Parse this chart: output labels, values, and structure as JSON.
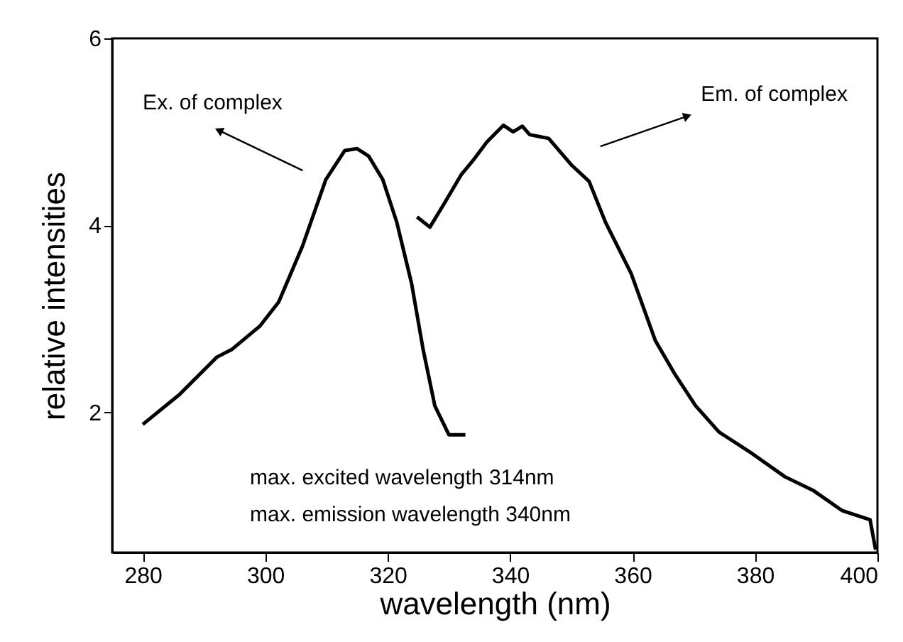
{
  "chart_data": {
    "type": "line",
    "xlabel": "wavelength (nm)",
    "ylabel": "relative intensities",
    "xlim": [
      275,
      400
    ],
    "xticks": [
      280,
      300,
      320,
      340,
      360,
      380,
      400
    ],
    "ylim": [
      0.5,
      6
    ],
    "yticks": [
      2,
      4,
      6
    ],
    "line_style": "solid",
    "marker": "none",
    "series": [
      {
        "color": "#000000",
        "x": [
          280,
          286,
          292.1,
          294.5,
          299.1,
          302.2,
          306.1,
          309.9,
          313,
          315,
          316.9,
          319.2,
          321.5,
          323.9,
          325.8,
          327.7,
          330,
          332.7
        ],
        "values": [
          1.87,
          2.19,
          2.59,
          2.67,
          2.92,
          3.18,
          3.78,
          4.49,
          4.8,
          4.82,
          4.74,
          4.49,
          4.03,
          3.38,
          2.67,
          2.07,
          1.76,
          1.76
        ]
      },
      {
        "color": "#000000",
        "x": [
          324.8,
          326.9,
          329.3,
          332,
          333.9,
          336.2,
          338.9,
          340.5,
          342,
          343.2,
          346.3,
          350.1,
          352.9,
          355.6,
          359.8,
          363.7,
          366.8,
          370.3,
          374.1,
          379.5,
          384.9,
          389.6,
          394.2,
          398.8,
          399.7
        ],
        "values": [
          4.09,
          3.98,
          4.24,
          4.54,
          4.69,
          4.89,
          5.07,
          5.0,
          5.06,
          4.97,
          4.93,
          4.64,
          4.47,
          4.03,
          3.48,
          2.77,
          2.42,
          2.07,
          1.79,
          1.56,
          1.31,
          1.16,
          0.95,
          0.85,
          0.53
        ]
      }
    ],
    "annotations": [
      "Ex. of complex",
      "Em. of complex",
      "max. excited wavelength 314nm",
      "max. emission wavelength 340nm"
    ]
  }
}
